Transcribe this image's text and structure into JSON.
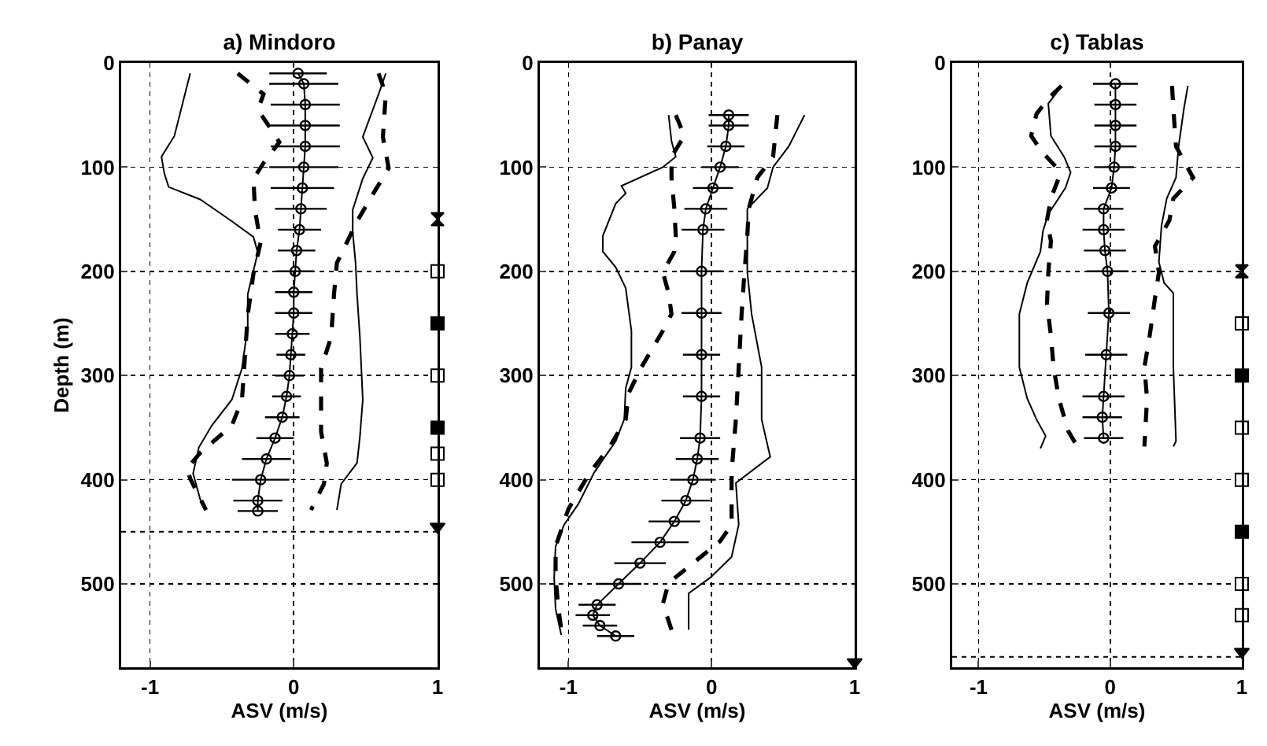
{
  "chart_data": [
    {
      "type": "line",
      "title": "a) Mindoro",
      "xlabel": "ASV (m/s)",
      "ylabel": "Depth (m)",
      "xlim": [
        -1.2,
        1
      ],
      "ylim": [
        580,
        0
      ],
      "xticks": [
        -1,
        0,
        1
      ],
      "yticks": [
        0,
        100,
        200,
        300,
        400,
        500
      ],
      "grid": true,
      "ref_lines": [
        {
          "axis": "y",
          "value": 450,
          "line_style": "dotted"
        }
      ],
      "series": [
        {
          "color": "#000000",
          "line_style": "solid",
          "marker": "none",
          "x": [
            -0.72,
            -0.83,
            -0.92,
            -0.9,
            -0.87,
            -0.65,
            -0.43,
            -0.28,
            -0.25,
            -0.32,
            -0.32,
            -0.36,
            -0.43,
            -0.57,
            -0.66,
            -0.7,
            -0.65,
            -0.61
          ],
          "values": [
            10,
            70,
            90,
            106,
            119,
            131,
            152,
            167,
            182,
            222,
            253,
            293,
            323,
            348,
            369,
            394,
            419,
            429
          ]
        },
        {
          "color": "#000000",
          "line_style": "dashed",
          "marker": "none",
          "x": [
            -0.39,
            -0.21,
            -0.25,
            -0.17,
            -0.1,
            -0.21,
            -0.28,
            -0.27,
            -0.23,
            -0.28,
            -0.32,
            -0.34,
            -0.36,
            -0.43,
            -0.65,
            -0.74,
            -0.72,
            -0.61
          ],
          "values": [
            10,
            30,
            45,
            61,
            76,
            96,
            111,
            141,
            172,
            202,
            242,
            283,
            323,
            348,
            374,
            389,
            399,
            429
          ]
        },
        {
          "color": "#000000",
          "line_style": "solid",
          "marker": "circle",
          "x": [
            0.03,
            0.07,
            0.08,
            0.08,
            0.08,
            0.07,
            0.06,
            0.05,
            0.04,
            0.02,
            0.01,
            0.0,
            0.0,
            -0.01,
            -0.02,
            -0.03,
            -0.05,
            -0.08,
            -0.13,
            -0.19,
            -0.23,
            -0.25,
            -0.25
          ],
          "values": [
            10,
            20,
            40,
            60,
            80,
            100,
            120,
            140,
            160,
            180,
            200,
            220,
            240,
            260,
            280,
            300,
            320,
            340,
            360,
            380,
            400,
            420,
            430
          ],
          "xerrors": [
            0.2,
            0.24,
            0.24,
            0.24,
            0.24,
            0.24,
            0.22,
            0.18,
            0.15,
            0.13,
            0.13,
            0.13,
            0.13,
            0.12,
            0.1,
            0.1,
            0.1,
            0.12,
            0.13,
            0.17,
            0.2,
            0.17,
            0.14
          ]
        },
        {
          "color": "#000000",
          "line_style": "dashed",
          "marker": "none",
          "x": [
            0.59,
            0.64,
            0.62,
            0.66,
            0.55,
            0.44,
            0.37,
            0.3,
            0.28,
            0.26,
            0.19,
            0.19,
            0.19,
            0.23,
            0.21,
            0.12
          ],
          "values": [
            10,
            30,
            71,
            101,
            126,
            152,
            172,
            192,
            222,
            263,
            293,
            323,
            354,
            384,
            404,
            429
          ]
        },
        {
          "color": "#000000",
          "line_style": "solid",
          "marker": "none",
          "x": [
            0.64,
            0.59,
            0.48,
            0.55,
            0.48,
            0.41,
            0.41,
            0.43,
            0.44,
            0.46,
            0.48,
            0.46,
            0.44,
            0.33,
            0.3
          ],
          "values": [
            10,
            30,
            71,
            91,
            111,
            141,
            162,
            192,
            222,
            263,
            323,
            359,
            384,
            404,
            429
          ]
        },
        {
          "type": "scatter",
          "color": "#000000",
          "marker": "diamond",
          "x": [
            1
          ],
          "values": [
            150
          ]
        },
        {
          "type": "scatter",
          "color": "#ffffff",
          "marker": "square",
          "x": [
            1,
            1,
            1,
            1
          ],
          "values": [
            200,
            300,
            375,
            400
          ]
        },
        {
          "type": "scatter",
          "color": "#000000",
          "marker": "square",
          "x": [
            1,
            1
          ],
          "values": [
            250,
            350
          ]
        },
        {
          "type": "scatter",
          "color": "#000000",
          "marker": "triangle",
          "x": [
            1
          ],
          "values": [
            445
          ]
        }
      ]
    },
    {
      "type": "line",
      "title": "b) Panay",
      "xlabel": "ASV (m/s)",
      "xlim": [
        -1.2,
        1
      ],
      "ylim": [
        580,
        0
      ],
      "xticks": [
        -1,
        0,
        1
      ],
      "yticks": [
        0,
        100,
        200,
        300,
        400,
        500
      ],
      "grid": true,
      "series": [
        {
          "color": "#000000",
          "line_style": "solid",
          "marker": "none",
          "x": [
            -0.3,
            -0.28,
            -0.25,
            -0.34,
            -0.63,
            -0.6,
            -0.67,
            -0.76,
            -0.76,
            -0.67,
            -0.6,
            -0.56,
            -0.56,
            -0.6,
            -0.61,
            -0.67,
            -0.82,
            -0.93,
            -1.03,
            -1.09,
            -1.1,
            -1.09,
            -1.05
          ],
          "values": [
            50,
            75,
            90,
            100,
            118,
            125,
            135,
            166,
            181,
            196,
            216,
            257,
            292,
            312,
            342,
            363,
            393,
            423,
            443,
            464,
            494,
            524,
            549
          ]
        },
        {
          "color": "#000000",
          "line_style": "dashed",
          "marker": "none",
          "x": [
            -0.25,
            -0.19,
            -0.28,
            -0.28,
            -0.26,
            -0.25,
            -0.26,
            -0.34,
            -0.3,
            -0.28,
            -0.34,
            -0.49,
            -0.58,
            -0.6,
            -0.71,
            -0.85,
            -1.0,
            -1.09,
            -1.09,
            -1.07,
            -1.05
          ],
          "values": [
            50,
            70,
            90,
            110,
            140,
            166,
            181,
            201,
            221,
            241,
            257,
            292,
            317,
            342,
            368,
            393,
            428,
            464,
            494,
            524,
            544
          ]
        },
        {
          "color": "#000000",
          "line_style": "solid",
          "marker": "circle",
          "x": [
            0.12,
            0.12,
            0.1,
            0.06,
            0.01,
            -0.04,
            -0.06,
            -0.07,
            -0.07,
            -0.07,
            -0.07,
            -0.08,
            -0.1,
            -0.13,
            -0.18,
            -0.26,
            -0.36,
            -0.5,
            -0.65,
            -0.8,
            -0.83,
            -0.78,
            -0.67
          ],
          "values": [
            50,
            60,
            80,
            100,
            120,
            140,
            160,
            200,
            240,
            280,
            320,
            360,
            380,
            400,
            420,
            440,
            460,
            480,
            500,
            520,
            530,
            540,
            550
          ],
          "xerrors": [
            0.14,
            0.14,
            0.13,
            0.13,
            0.14,
            0.15,
            0.15,
            0.15,
            0.14,
            0.13,
            0.13,
            0.14,
            0.15,
            0.16,
            0.17,
            0.18,
            0.2,
            0.18,
            0.16,
            0.13,
            0.12,
            0.12,
            0.13
          ]
        },
        {
          "color": "#000000",
          "line_style": "dashed",
          "marker": "none",
          "x": [
            0.46,
            0.43,
            0.32,
            0.26,
            0.25,
            0.23,
            0.21,
            0.19,
            0.17,
            0.14,
            0.14,
            0.06,
            -0.12,
            -0.3,
            -0.34,
            -0.28
          ],
          "values": [
            50,
            90,
            110,
            140,
            166,
            201,
            241,
            292,
            342,
            393,
            443,
            459,
            479,
            499,
            519,
            544
          ]
        },
        {
          "color": "#000000",
          "line_style": "solid",
          "marker": "none",
          "x": [
            0.65,
            0.54,
            0.43,
            0.39,
            0.25,
            0.25,
            0.25,
            0.28,
            0.35,
            0.35,
            0.41,
            0.17,
            0.19,
            0.14,
            -0.01,
            -0.16,
            -0.16
          ],
          "values": [
            50,
            80,
            100,
            120,
            140,
            166,
            201,
            241,
            292,
            342,
            378,
            403,
            443,
            474,
            494,
            509,
            544
          ]
        },
        {
          "type": "scatter",
          "color": "#000000",
          "marker": "triangle",
          "x": [
            1
          ],
          "values": [
            575
          ]
        }
      ]
    },
    {
      "type": "line",
      "title": "c) Tablas",
      "xlabel": "ASV (m/s)",
      "xlim": [
        -1.2,
        1
      ],
      "ylim": [
        580,
        0
      ],
      "xticks": [
        -1,
        0,
        1
      ],
      "yticks": [
        0,
        100,
        200,
        300,
        400,
        500
      ],
      "grid": true,
      "ref_lines": [
        {
          "axis": "y",
          "value": 570,
          "line_style": "dotted"
        }
      ],
      "series": [
        {
          "color": "#000000",
          "line_style": "solid",
          "marker": "none",
          "x": [
            -0.38,
            -0.47,
            -0.45,
            -0.35,
            -0.3,
            -0.34,
            -0.47,
            -0.51,
            -0.53,
            -0.63,
            -0.69,
            -0.69,
            -0.63,
            -0.56,
            -0.49,
            -0.53
          ],
          "values": [
            24,
            39,
            70,
            90,
            105,
            120,
            145,
            161,
            181,
            211,
            241,
            292,
            322,
            342,
            358,
            370
          ]
        },
        {
          "color": "#000000",
          "line_style": "dashed",
          "marker": "none",
          "x": [
            -0.37,
            -0.47,
            -0.56,
            -0.6,
            -0.52,
            -0.41,
            -0.39,
            -0.45,
            -0.48,
            -0.45,
            -0.47,
            -0.48,
            -0.45,
            -0.43,
            -0.39,
            -0.32,
            -0.25
          ],
          "values": [
            22,
            34,
            49,
            70,
            85,
            100,
            110,
            130,
            151,
            171,
            201,
            231,
            262,
            292,
            322,
            353,
            368
          ]
        },
        {
          "color": "#000000",
          "line_style": "solid",
          "marker": "circle",
          "x": [
            0.04,
            0.04,
            0.04,
            0.04,
            0.03,
            0.01,
            -0.05,
            -0.05,
            -0.04,
            -0.02,
            -0.01,
            -0.03,
            -0.05,
            -0.06,
            -0.05
          ],
          "values": [
            20,
            40,
            60,
            80,
            100,
            120,
            140,
            160,
            180,
            200,
            240,
            280,
            320,
            340,
            360
          ],
          "xerrors": [
            0.17,
            0.16,
            0.16,
            0.16,
            0.15,
            0.14,
            0.15,
            0.16,
            0.16,
            0.16,
            0.16,
            0.16,
            0.16,
            0.15,
            0.15
          ]
        },
        {
          "color": "#000000",
          "line_style": "dashed",
          "marker": "none",
          "x": [
            0.47,
            0.48,
            0.5,
            0.63,
            0.48,
            0.45,
            0.34,
            0.37,
            0.34,
            0.3,
            0.26,
            0.28,
            0.26
          ],
          "values": [
            22,
            44,
            80,
            110,
            130,
            151,
            176,
            201,
            226,
            262,
            292,
            322,
            368
          ]
        },
        {
          "color": "#000000",
          "line_style": "solid",
          "marker": "none",
          "x": [
            0.59,
            0.56,
            0.52,
            0.5,
            0.43,
            0.39,
            0.37,
            0.41,
            0.48,
            0.48,
            0.5,
            0.48
          ],
          "values": [
            22,
            44,
            80,
            110,
            130,
            156,
            191,
            211,
            221,
            292,
            363,
            368
          ]
        },
        {
          "type": "scatter",
          "color": "#000000",
          "marker": "diamond",
          "x": [
            1
          ],
          "values": [
            200
          ]
        },
        {
          "type": "scatter",
          "color": "#ffffff",
          "marker": "square",
          "x": [
            1,
            1,
            1,
            1,
            1
          ],
          "values": [
            250,
            350,
            400,
            500,
            530
          ]
        },
        {
          "type": "scatter",
          "color": "#000000",
          "marker": "square",
          "x": [
            1,
            1
          ],
          "values": [
            300,
            450
          ]
        },
        {
          "type": "scatter",
          "color": "#000000",
          "marker": "triangle",
          "x": [
            1
          ],
          "values": [
            565
          ]
        }
      ]
    }
  ]
}
